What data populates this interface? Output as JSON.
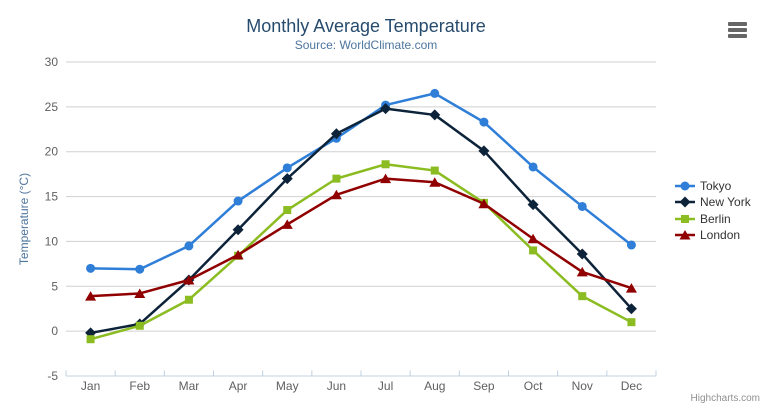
{
  "chart": {
    "title": "Monthly Average Temperature",
    "subtitle": "Source: WorldClimate.com",
    "credits": "Highcharts.com"
  },
  "chart_data": {
    "type": "line",
    "title": "Monthly Average Temperature",
    "subtitle": "Source: WorldClimate.com",
    "categories": [
      "Jan",
      "Feb",
      "Mar",
      "Apr",
      "May",
      "Jun",
      "Jul",
      "Aug",
      "Sep",
      "Oct",
      "Nov",
      "Dec"
    ],
    "series": [
      {
        "name": "Tokyo",
        "color": "#2f7ed8",
        "marker": "circle",
        "values": [
          7.0,
          6.9,
          9.5,
          14.5,
          18.2,
          21.5,
          25.2,
          26.5,
          23.3,
          18.3,
          13.9,
          9.6
        ]
      },
      {
        "name": "New York",
        "color": "#0d233a",
        "marker": "diamond",
        "values": [
          -0.2,
          0.8,
          5.7,
          11.3,
          17.0,
          22.0,
          24.8,
          24.1,
          20.1,
          14.1,
          8.6,
          2.5
        ]
      },
      {
        "name": "Berlin",
        "color": "#8bbc21",
        "marker": "square",
        "values": [
          -0.9,
          0.6,
          3.5,
          8.4,
          13.5,
          17.0,
          18.6,
          17.9,
          14.3,
          9.0,
          3.9,
          1.0
        ]
      },
      {
        "name": "London",
        "color": "#910000",
        "marker": "triangle",
        "values": [
          3.9,
          4.2,
          5.7,
          8.5,
          11.9,
          15.2,
          17.0,
          16.6,
          14.2,
          10.3,
          6.6,
          4.8
        ]
      }
    ],
    "xlabel": "",
    "ylabel": "Temperature (°C)",
    "ylim": [
      -5,
      30
    ],
    "ytick_interval": 5,
    "grid": true,
    "legend_position": "right-middle-vertical"
  },
  "colors": {
    "title": "#274b6d",
    "subtitle": "#4d759e",
    "axis_label": "#606060",
    "axis_line": "#c0d0e0",
    "gridline": "#d0d0d0",
    "legend_text": "#333333",
    "credits": "#909090"
  }
}
